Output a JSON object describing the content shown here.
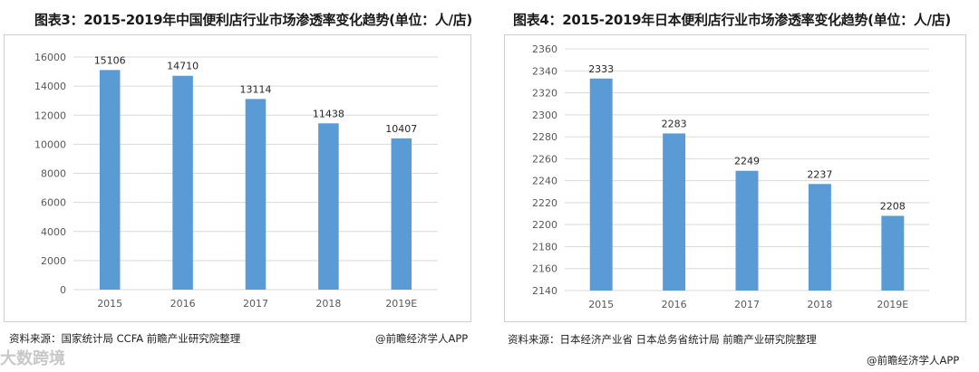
{
  "left": {
    "title": "图表3：2015-2019年中国便利店行业市场渗透率变化趋势(单位：人/店)",
    "source": "资料来源：国家统计局 CCFA 前瞻产业研究院整理",
    "credit": "@前瞻经济学人APP"
  },
  "right": {
    "title": "图表4：2015-2019年日本便利店行业市场渗透率变化趋势(单位：人/店)",
    "source": "资料来源：日本经济产业省 日本总务省统计局 前瞻产业研究院整理",
    "credit": "@前瞻经济学人APP"
  },
  "bottom_logo": "大数跨境",
  "colors": {
    "bar": "#5b9bd5",
    "grid": "#d9d9d9",
    "axis_text": "#595959"
  },
  "chart_data": [
    {
      "type": "bar",
      "title": "图表3：2015-2019年中国便利店行业市场渗透率变化趋势(单位：人/店)",
      "categories": [
        "2015",
        "2016",
        "2017",
        "2018",
        "2019E"
      ],
      "values": [
        15106,
        14710,
        13114,
        11438,
        10407
      ],
      "ylim": [
        0,
        16000
      ],
      "yticks": [
        0,
        2000,
        4000,
        6000,
        8000,
        10000,
        12000,
        14000,
        16000
      ],
      "grid": true,
      "xlabel": "",
      "ylabel": ""
    },
    {
      "type": "bar",
      "title": "图表4：2015-2019年日本便利店行业市场渗透率变化趋势(单位：人/店)",
      "categories": [
        "2015",
        "2016",
        "2017",
        "2018",
        "2019E"
      ],
      "values": [
        2333,
        2283,
        2249,
        2237,
        2208
      ],
      "ylim": [
        2140,
        2360
      ],
      "yticks": [
        2140,
        2160,
        2180,
        2200,
        2220,
        2240,
        2260,
        2280,
        2300,
        2320,
        2340,
        2360
      ],
      "grid": true,
      "xlabel": "",
      "ylabel": ""
    }
  ]
}
